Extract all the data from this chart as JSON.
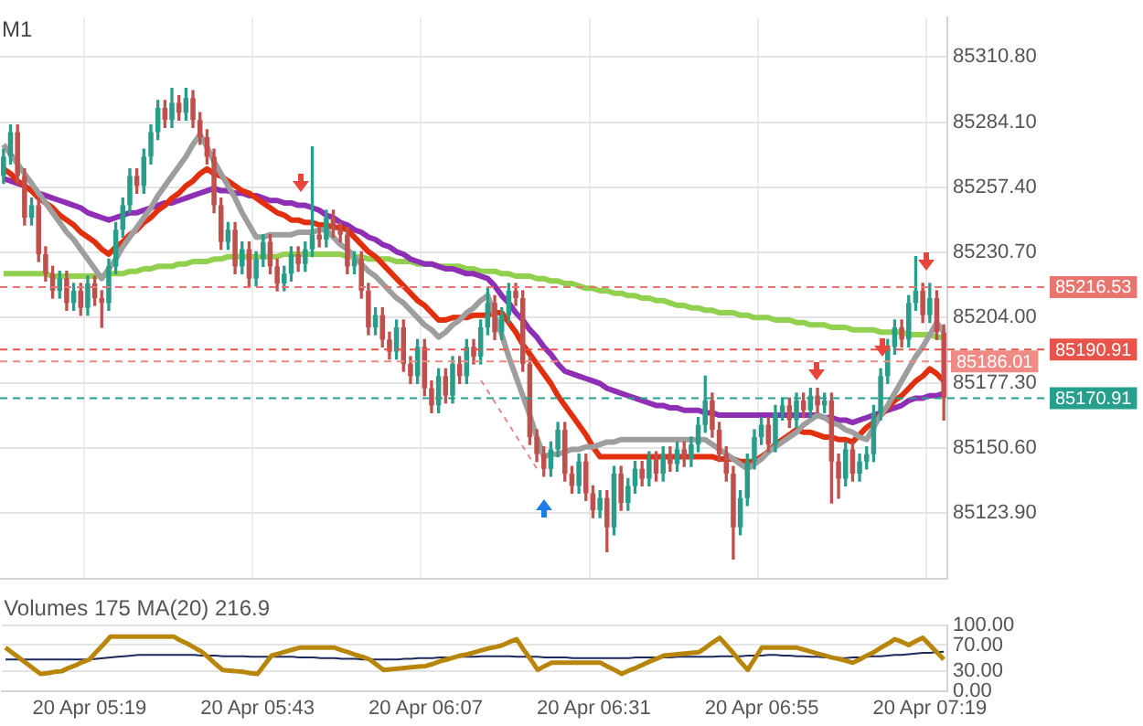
{
  "chart_data": [
    {
      "type": "candlestick",
      "title": "M1",
      "categories": [
        null,
        null,
        null,
        null,
        null,
        null,
        null,
        null,
        null,
        null,
        null,
        null,
        null,
        null,
        null,
        null,
        null,
        null,
        null,
        null,
        null,
        null,
        null,
        null,
        null,
        null,
        null,
        null,
        null,
        null,
        null,
        null,
        null,
        null,
        null,
        null,
        null,
        null,
        null,
        null,
        null,
        null,
        null,
        null,
        null,
        null,
        null,
        null,
        null,
        null,
        null,
        null,
        null,
        null,
        null,
        null,
        null,
        null,
        null,
        null,
        null,
        null,
        null,
        null,
        null,
        null,
        null,
        null,
        null,
        null,
        null,
        null,
        null,
        null,
        null,
        null,
        null,
        null,
        null,
        null,
        null,
        null,
        null,
        null,
        null,
        null,
        null,
        null,
        null,
        null,
        null,
        null,
        null,
        null,
        null,
        null,
        null,
        null,
        null,
        null,
        null,
        null,
        null,
        null,
        null,
        null,
        null,
        null,
        null,
        null,
        null,
        null,
        null,
        null,
        null,
        null,
        null,
        null,
        null,
        null,
        null,
        null,
        null,
        null,
        null,
        null,
        null,
        null,
        null,
        null,
        null,
        null,
        null,
        null,
        null
      ],
      "ohlc": [
        [
          85262,
          85273,
          85259,
          85270
        ],
        [
          85270,
          85283,
          85267,
          85280
        ],
        [
          85280,
          85283,
          85259,
          85262
        ],
        [
          85262,
          85265,
          85242,
          85245
        ],
        [
          85245,
          85253,
          85242,
          85250
        ],
        [
          85250,
          85253,
          85227,
          85230
        ],
        [
          85230,
          85233,
          85219,
          85222
        ],
        [
          85222,
          85225,
          85212,
          85215
        ],
        [
          85215,
          85223,
          85212,
          85220
        ],
        [
          85220,
          85223,
          85207,
          85210
        ],
        [
          85210,
          85218,
          85207,
          85215
        ],
        [
          85215,
          85218,
          85205,
          85208
        ],
        [
          85208,
          85221,
          85205,
          85218
        ],
        [
          85218,
          85221,
          85209,
          85212
        ],
        [
          85212,
          85215,
          85200,
          85210
        ],
        [
          85210,
          85228,
          85207,
          85225
        ],
        [
          85225,
          85243,
          85222,
          85240
        ],
        [
          85240,
          85253,
          85237,
          85250
        ],
        [
          85250,
          85265,
          85247,
          85262
        ],
        [
          85262,
          85265,
          85255,
          85258
        ],
        [
          85258,
          85273,
          85255,
          85270
        ],
        [
          85270,
          85283,
          85267,
          85280
        ],
        [
          85280,
          85293,
          85277,
          85290
        ],
        [
          85290,
          85293,
          85282,
          85285
        ],
        [
          85285,
          85298,
          85282,
          85292
        ],
        [
          85292,
          85295,
          85285,
          85288
        ],
        [
          85288,
          85298,
          85285,
          85294
        ],
        [
          85294,
          85297,
          85282,
          85285
        ],
        [
          85285,
          85288,
          85275,
          85278
        ],
        [
          85278,
          85281,
          85267,
          85270
        ],
        [
          85270,
          85273,
          85247,
          85250
        ],
        [
          85250,
          85253,
          85232,
          85235
        ],
        [
          85235,
          85243,
          85232,
          85240
        ],
        [
          85240,
          85243,
          85222,
          85225
        ],
        [
          85225,
          85235,
          85222,
          85232
        ],
        [
          85232,
          85235,
          85217,
          85220
        ],
        [
          85220,
          85231,
          85217,
          85228
        ],
        [
          85228,
          85238,
          85225,
          85235
        ],
        [
          85235,
          85238,
          85222,
          85225
        ],
        [
          85225,
          85228,
          85215,
          85218
        ],
        [
          85218,
          85225,
          85215,
          85222
        ],
        [
          85222,
          85233,
          85219,
          85230
        ],
        [
          85230,
          85233,
          85223,
          85226
        ],
        [
          85226,
          85235,
          85223,
          85232
        ],
        [
          85232,
          85274,
          85229,
          85238
        ],
        [
          85238,
          85241,
          85233,
          85236
        ],
        [
          85236,
          85248,
          85233,
          85245
        ],
        [
          85245,
          85248,
          85237,
          85240
        ],
        [
          85240,
          85243,
          85235,
          85238
        ],
        [
          85238,
          85241,
          85222,
          85225
        ],
        [
          85225,
          85231,
          85222,
          85228
        ],
        [
          85228,
          85231,
          85212,
          85215
        ],
        [
          85215,
          85218,
          85197,
          85200
        ],
        [
          85200,
          85208,
          85197,
          85205
        ],
        [
          85205,
          85208,
          85192,
          85195
        ],
        [
          85195,
          85198,
          85187,
          85190
        ],
        [
          85190,
          85203,
          85187,
          85200
        ],
        [
          85200,
          85203,
          85182,
          85185
        ],
        [
          85185,
          85188,
          85177,
          85180
        ],
        [
          85180,
          85195,
          85177,
          85192
        ],
        [
          85192,
          85195,
          85172,
          85175
        ],
        [
          85175,
          85178,
          85165,
          85168
        ],
        [
          85168,
          85183,
          85165,
          85180
        ],
        [
          85180,
          85183,
          85169,
          85172
        ],
        [
          85172,
          85188,
          85169,
          85185
        ],
        [
          85185,
          85188,
          85177,
          85180
        ],
        [
          85180,
          85195,
          85177,
          85192
        ],
        [
          85192,
          85195,
          85185,
          85188
        ],
        [
          85188,
          85203,
          85185,
          85200
        ],
        [
          85200,
          85216,
          85197,
          85210
        ],
        [
          85210,
          85213,
          85195,
          85198
        ],
        [
          85198,
          85208,
          85195,
          85205
        ],
        [
          85205,
          85218,
          85202,
          85215
        ],
        [
          85215,
          85218,
          85209,
          85212
        ],
        [
          85212,
          85215,
          85182,
          85185
        ],
        [
          85185,
          85188,
          85152,
          85155
        ],
        [
          85155,
          85158,
          85145,
          85148
        ],
        [
          85148,
          85151,
          85139,
          85142
        ],
        [
          85142,
          85153,
          85139,
          85150
        ],
        [
          85150,
          85161,
          85147,
          85158
        ],
        [
          85158,
          85161,
          85137,
          85140
        ],
        [
          85140,
          85143,
          85132,
          85135
        ],
        [
          85135,
          85148,
          85132,
          85145
        ],
        [
          85145,
          85148,
          85129,
          85132
        ],
        [
          85132,
          85135,
          85122,
          85125
        ],
        [
          85125,
          85133,
          85122,
          85130
        ],
        [
          85130,
          85133,
          85108,
          85118
        ],
        [
          85118,
          85143,
          85115,
          85140
        ],
        [
          85140,
          85143,
          85125,
          85128
        ],
        [
          85128,
          85138,
          85125,
          85135
        ],
        [
          85135,
          85145,
          85132,
          85142
        ],
        [
          85142,
          85145,
          85135,
          85138
        ],
        [
          85138,
          85149,
          85135,
          85146
        ],
        [
          85146,
          85149,
          85137,
          85140
        ],
        [
          85140,
          85151,
          85137,
          85148
        ],
        [
          85148,
          85151,
          85141,
          85144
        ],
        [
          85144,
          85153,
          85141,
          85150
        ],
        [
          85150,
          85153,
          85143,
          85146
        ],
        [
          85146,
          85155,
          85143,
          85152
        ],
        [
          85152,
          85163,
          85149,
          85160
        ],
        [
          85160,
          85180,
          85157,
          85170
        ],
        [
          85170,
          85173,
          85155,
          85158
        ],
        [
          85158,
          85161,
          85145,
          85148
        ],
        [
          85148,
          85151,
          85137,
          85140
        ],
        [
          85140,
          85143,
          85105,
          85118
        ],
        [
          85118,
          85133,
          85115,
          85130
        ],
        [
          85130,
          85148,
          85127,
          85145
        ],
        [
          85145,
          85158,
          85142,
          85155
        ],
        [
          85155,
          85163,
          85152,
          85160
        ],
        [
          85160,
          85163,
          85149,
          85152
        ],
        [
          85152,
          85168,
          85149,
          85165
        ],
        [
          85165,
          85171,
          85162,
          85168
        ],
        [
          85168,
          85171,
          85159,
          85162
        ],
        [
          85162,
          85173,
          85159,
          85170
        ],
        [
          85170,
          85173,
          85163,
          85166
        ],
        [
          85166,
          85175,
          85163,
          85172
        ],
        [
          85172,
          85175,
          85165,
          85168
        ],
        [
          85168,
          85173,
          85165,
          85170
        ],
        [
          85170,
          85173,
          85128,
          85145
        ],
        [
          85145,
          85148,
          85130,
          85138
        ],
        [
          85138,
          85153,
          85135,
          85150
        ],
        [
          85150,
          85153,
          85137,
          85140
        ],
        [
          85140,
          85148,
          85137,
          85145
        ],
        [
          85145,
          85151,
          85142,
          85148
        ],
        [
          85148,
          85168,
          85145,
          85165
        ],
        [
          85165,
          85183,
          85162,
          85180
        ],
        [
          85180,
          85195,
          85177,
          85192
        ],
        [
          85192,
          85203,
          85189,
          85200
        ],
        [
          85200,
          85203,
          85192,
          85195
        ],
        [
          85195,
          85213,
          85192,
          85210
        ],
        [
          85210,
          85229,
          85207,
          85215
        ],
        [
          85215,
          85218,
          85202,
          85205
        ],
        [
          85205,
          85218,
          85202,
          85212
        ],
        [
          85212,
          85215,
          85195,
          85198
        ],
        [
          85198,
          85201,
          85162,
          85171
        ]
      ],
      "series": [
        {
          "type": "line",
          "color": "#9e9e9e",
          "values": [
            85275,
            85271,
            85267,
            85263,
            85259,
            85255,
            85251,
            85247,
            85243,
            85239,
            85236,
            85232,
            85228,
            85224,
            85220,
            85224,
            85228,
            85233,
            85237,
            85241,
            85245,
            85249,
            85254,
            85258,
            85262,
            85266,
            85270,
            85275,
            85279,
            85274,
            85268,
            85263,
            85258,
            85253,
            85247,
            85242,
            85237,
            85237,
            85238,
            85238,
            85238,
            85238,
            85239,
            85239,
            85239,
            85240,
            85240,
            85237,
            85234,
            85232,
            85229,
            85226,
            85223,
            85221,
            85218,
            85215,
            85212,
            85210,
            85207,
            85204,
            85201,
            85199,
            85196,
            85198,
            85201,
            85203,
            85206,
            85208,
            85211,
            85213,
            85205,
            85197,
            85188,
            85180,
            85172,
            85164,
            85155,
            85147,
            85148,
            85148,
            85149,
            85150,
            85150,
            85151,
            85151,
            85152,
            85153,
            85153,
            85154,
            85154,
            85154,
            85154,
            85154,
            85154,
            85154,
            85154,
            85154,
            85154,
            85154,
            85154,
            85154,
            85152,
            85150,
            85148,
            85146,
            85144,
            85142,
            85144,
            85146,
            85149,
            85151,
            85153,
            85155,
            85157,
            85160,
            85162,
            85164,
            85163,
            85161,
            85160,
            85158,
            85157,
            85155,
            85154,
            85159,
            85164,
            85168,
            85173,
            85178,
            85183,
            85188,
            85192,
            85197,
            85202,
            85198
          ]
        },
        {
          "type": "line",
          "color": "#e2300f",
          "values": [
            85265,
            85263,
            85260,
            85258,
            85256,
            85253,
            85251,
            85249,
            85246,
            85244,
            85242,
            85239,
            85237,
            85235,
            85232,
            85230,
            85233,
            85235,
            85238,
            85240,
            85243,
            85245,
            85248,
            85250,
            85253,
            85255,
            85258,
            85260,
            85263,
            85265,
            85263,
            85262,
            85260,
            85258,
            85256,
            85255,
            85253,
            85251,
            85249,
            85247,
            85246,
            85244,
            85244,
            85243,
            85243,
            85242,
            85242,
            85241,
            85241,
            85240,
            85237,
            85234,
            85231,
            85229,
            85226,
            85223,
            85220,
            85217,
            85214,
            85211,
            85209,
            85206,
            85203,
            85203,
            85204,
            85204,
            85204,
            85205,
            85205,
            85205,
            85206,
            85206,
            85202,
            85198,
            85193,
            85189,
            85185,
            85181,
            85177,
            85172,
            85168,
            85164,
            85160,
            85156,
            85151,
            85147,
            85147,
            85147,
            85147,
            85147,
            85147,
            85147,
            85147,
            85147,
            85147,
            85147,
            85147,
            85147,
            85147,
            85147,
            85147,
            85147,
            85146,
            85146,
            85146,
            85145,
            85145,
            85145,
            85147,
            85149,
            85152,
            85154,
            85156,
            85158,
            85157,
            85157,
            85156,
            85155,
            85155,
            85154,
            85154,
            85153,
            85156,
            85159,
            85161,
            85164,
            85167,
            85170,
            85172,
            85175,
            85178,
            85180,
            85183,
            85181,
            85178
          ]
        },
        {
          "type": "line",
          "color": "#8e2fb5",
          "values": [
            85261,
            85260,
            85259,
            85258,
            85256,
            85255,
            85254,
            85253,
            85252,
            85251,
            85250,
            85249,
            85247,
            85246,
            85245,
            85244,
            85245,
            85246,
            85247,
            85247,
            85248,
            85249,
            85250,
            85251,
            85251,
            85252,
            85253,
            85254,
            85255,
            85256,
            85257,
            85256,
            85256,
            85255,
            85255,
            85254,
            85254,
            85253,
            85252,
            85252,
            85251,
            85251,
            85250,
            85250,
            85249,
            85248,
            85246,
            85245,
            85243,
            85242,
            85240,
            85239,
            85237,
            85236,
            85234,
            85233,
            85231,
            85230,
            85228,
            85227,
            85226,
            85226,
            85225,
            85224,
            85224,
            85223,
            85222,
            85222,
            85221,
            85220,
            85217,
            85213,
            85210,
            85206,
            85203,
            85199,
            85196,
            85192,
            85189,
            85185,
            85182,
            85181,
            85180,
            85179,
            85178,
            85177,
            85175,
            85174,
            85173,
            85172,
            85171,
            85170,
            85169,
            85168,
            85168,
            85167,
            85167,
            85166,
            85166,
            85166,
            85165,
            85165,
            85164,
            85164,
            85164,
            85164,
            85164,
            85164,
            85164,
            85164,
            85164,
            85164,
            85164,
            85164,
            85164,
            85164,
            85164,
            85163,
            85163,
            85162,
            85162,
            85161,
            85162,
            85163,
            85164,
            85165,
            85166,
            85167,
            85168,
            85170,
            85171,
            85171,
            85172,
            85172,
            85173
          ]
        },
        {
          "type": "line",
          "color": "#92d050",
          "values": [
            85222,
            85222,
            85222,
            85222,
            85222,
            85222,
            85222,
            85221,
            85221,
            85221,
            85221,
            85221,
            85221,
            85221,
            85221,
            85222,
            85222,
            85222,
            85223,
            85223,
            85224,
            85224,
            85225,
            85225,
            85225,
            85226,
            85226,
            85227,
            85227,
            85227,
            85228,
            85228,
            85229,
            85229,
            85229,
            85229,
            85229,
            85229,
            85229,
            85229,
            85230,
            85230,
            85230,
            85230,
            85230,
            85230,
            85230,
            85230,
            85230,
            85229,
            85229,
            85229,
            85228,
            85228,
            85228,
            85228,
            85227,
            85227,
            85227,
            85226,
            85226,
            85226,
            85225,
            85225,
            85225,
            85225,
            85224,
            85224,
            85223,
            85223,
            85223,
            85222,
            85222,
            85221,
            85221,
            85221,
            85220,
            85220,
            85219,
            85219,
            85218,
            85218,
            85217,
            85216,
            85216,
            85215,
            85215,
            85214,
            85214,
            85213,
            85213,
            85212,
            85212,
            85211,
            85211,
            85210,
            85209,
            85209,
            85208,
            85208,
            85207,
            85207,
            85206,
            85206,
            85206,
            85205,
            85205,
            85204,
            85204,
            85204,
            85203,
            85203,
            85203,
            85202,
            85202,
            85201,
            85201,
            85201,
            85200,
            85200,
            85200,
            85199,
            85199,
            85199,
            85199,
            85198,
            85198,
            85198,
            85198,
            85197,
            85197,
            85197,
            85197,
            85196,
            85196
          ]
        }
      ],
      "ylim": [
        85097,
        85327
      ],
      "yticks": [
        {
          "value": 85123.9,
          "label": "85123.90"
        },
        {
          "value": 85150.6,
          "label": "85150.60"
        },
        {
          "value": 85177.3,
          "label": "85177.30"
        },
        {
          "value": 85204,
          "label": "85204.00"
        },
        {
          "value": 85230.7,
          "label": "85230.70"
        },
        {
          "value": 85257.4,
          "label": "85257.40"
        },
        {
          "value": 85284.1,
          "label": "85284.10"
        },
        {
          "value": 85310.8,
          "label": "85310.80"
        }
      ],
      "ref_lines": [
        {
          "axis": "y",
          "value": 85216.53,
          "label": "85216.53",
          "color": "#e8766f",
          "line_style": "dashed"
        },
        {
          "axis": "y",
          "value": 85190.91,
          "label": "85190.91",
          "color": "#e8534a",
          "line_style": "dashed"
        },
        {
          "axis": "y",
          "value": 85186.01,
          "label": "85186.01",
          "color": "#f08a84",
          "line_style": "dashed"
        },
        {
          "axis": "y",
          "value": 85170.91,
          "label": "85170.91",
          "color": "#26a08c",
          "line_style": "dashed"
        }
      ],
      "grid": true,
      "tick_labels": "y"
    },
    {
      "type": "line",
      "categories": [
        null,
        null,
        null,
        null,
        null,
        null,
        null,
        null,
        null,
        null,
        null,
        null,
        "20 Apr 05:19",
        null,
        null,
        null,
        null,
        null,
        null,
        null,
        null,
        null,
        null,
        null,
        null,
        null,
        null,
        null,
        null,
        null,
        null,
        null,
        null,
        null,
        null,
        null,
        "20 Apr 05:43",
        null,
        null,
        null,
        null,
        null,
        null,
        null,
        null,
        null,
        null,
        null,
        null,
        null,
        null,
        null,
        null,
        null,
        null,
        null,
        null,
        null,
        null,
        null,
        "20 Apr 06:07",
        null,
        null,
        null,
        null,
        null,
        null,
        null,
        null,
        null,
        null,
        null,
        null,
        null,
        null,
        null,
        null,
        null,
        null,
        null,
        null,
        null,
        null,
        null,
        "20 Apr 06:31",
        null,
        null,
        null,
        null,
        null,
        null,
        null,
        null,
        null,
        null,
        null,
        null,
        null,
        null,
        null,
        null,
        null,
        null,
        null,
        null,
        null,
        null,
        null,
        "20 Apr 06:55",
        null,
        null,
        null,
        null,
        null,
        null,
        null,
        null,
        null,
        null,
        null,
        null,
        null,
        null,
        null,
        null,
        null,
        null,
        null,
        null,
        null,
        null,
        null,
        "20 Apr 07:19",
        null,
        null
      ],
      "series": [
        {
          "color": "#b8860b",
          "values": [
            66,
            58,
            50,
            42,
            34,
            26,
            27,
            29,
            30,
            35,
            39,
            44,
            48,
            60,
            71,
            83,
            83,
            83,
            83,
            83,
            83,
            83,
            83,
            83,
            83,
            77,
            72,
            66,
            60,
            51,
            41,
            32,
            31,
            30,
            29,
            27,
            26,
            40,
            54,
            57,
            60,
            63,
            66,
            66,
            66,
            66,
            66,
            66,
            62,
            59,
            55,
            52,
            48,
            40,
            32,
            33,
            34,
            35,
            36,
            37,
            38,
            41,
            45,
            48,
            51,
            54,
            56,
            59,
            62,
            65,
            67,
            70,
            75,
            79,
            63,
            48,
            32,
            38,
            43,
            43,
            43,
            43,
            43,
            43,
            43,
            43,
            37,
            32,
            26,
            31,
            35,
            40,
            45,
            49,
            54,
            55,
            56,
            57,
            58,
            59,
            66,
            74,
            81,
            69,
            57,
            44,
            32,
            49,
            66,
            66,
            66,
            66,
            66,
            66,
            63,
            60,
            57,
            54,
            51,
            49,
            46,
            43,
            48,
            54,
            59,
            66,
            72,
            79,
            75,
            70,
            76,
            81,
            70,
            59,
            48
          ]
        },
        {
          "color": "#1f2a5c",
          "values": [
            48,
            48,
            48,
            48,
            48,
            48,
            48,
            48,
            48,
            48,
            48,
            48,
            48,
            49,
            50,
            51,
            52,
            53,
            54,
            55,
            55,
            55,
            55,
            55,
            55,
            55,
            55,
            55,
            54,
            54,
            54,
            53,
            53,
            53,
            53,
            52,
            52,
            52,
            52,
            52,
            52,
            52,
            51,
            51,
            51,
            50,
            50,
            50,
            49,
            49,
            49,
            48,
            48,
            48,
            48,
            48,
            48,
            49,
            49,
            50,
            50,
            50,
            51,
            51,
            51,
            52,
            52,
            52,
            53,
            53,
            53,
            53,
            53,
            52,
            52,
            52,
            52,
            51,
            51,
            51,
            51,
            50,
            50,
            50,
            50,
            50,
            50,
            50,
            50,
            50,
            51,
            51,
            51,
            51,
            51,
            51,
            52,
            52,
            52,
            52,
            52,
            52,
            53,
            53,
            53,
            53,
            54,
            54,
            54,
            55,
            55,
            54,
            54,
            53,
            53,
            52,
            52,
            51,
            51,
            50,
            50,
            51,
            51,
            52,
            53,
            53,
            54,
            55,
            55,
            56,
            57,
            58,
            58,
            59,
            60
          ]
        }
      ],
      "ylim": [
        0,
        100
      ],
      "yticks": [
        {
          "value": 0,
          "label": "0.00"
        },
        {
          "value": 30,
          "label": "30.00"
        },
        {
          "value": 70,
          "label": "70.00"
        },
        {
          "value": 100,
          "label": "100.00"
        }
      ],
      "annotations": [
        "Volumes 175 MA(20) 216.9"
      ],
      "grid": "y"
    }
  ]
}
